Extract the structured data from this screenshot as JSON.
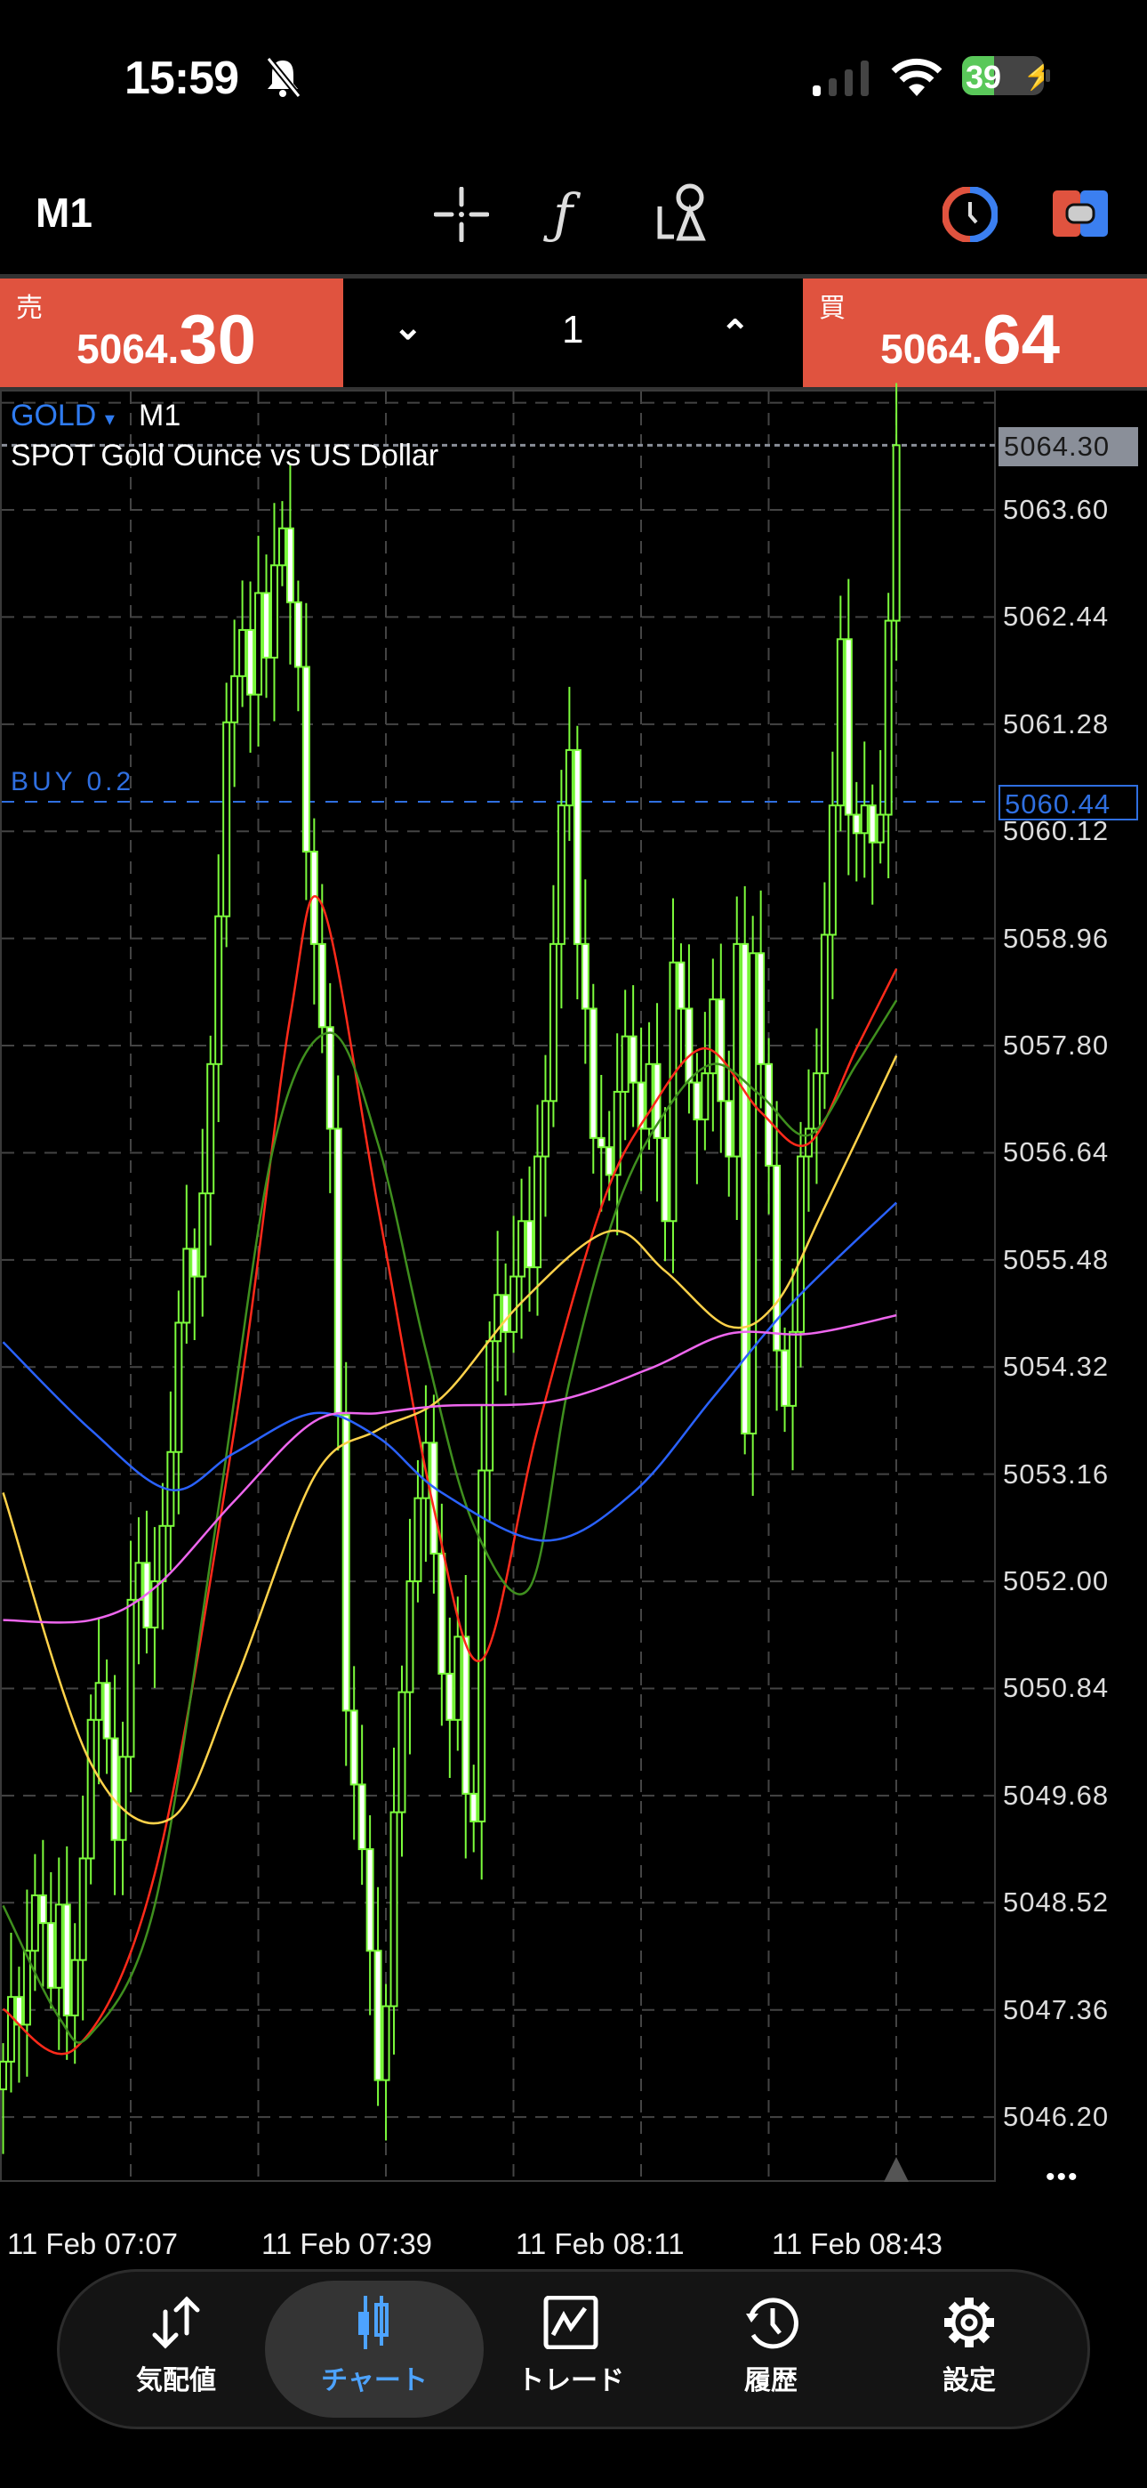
{
  "status_bar": {
    "time": "15:59",
    "battery": "39",
    "icons": [
      "bell-slash-icon",
      "cellular-signal-icon",
      "wifi-icon",
      "battery-charging-icon"
    ]
  },
  "toolbar": {
    "timeframe": "M1",
    "icons": [
      "crosshair-icon",
      "indicators-f-icon",
      "objects-icon",
      "one-click-trading-icon",
      "trade-panel-icon"
    ]
  },
  "trade_panel": {
    "sell": {
      "label": "売",
      "price_main": "5064.",
      "price_big": "30"
    },
    "buy": {
      "label": "買",
      "price_main": "5064.",
      "price_big": "64"
    },
    "lot": "1",
    "decrease_icon": "chevron-down-icon",
    "increase_icon": "chevron-up-icon"
  },
  "chart": {
    "symbol": "GOLD",
    "symbol_dropdown": "▾",
    "timeframe": "M1",
    "description": "SPOT Gold Ounce vs US Dollar",
    "position_label": "BUY 0.2",
    "more_label": "•••",
    "colors": {
      "candle": "#7cfc3c",
      "bear_fill": "#ffffff",
      "position": "#2f6fe0",
      "bid_line": "#8a8f99"
    }
  },
  "chart_data": {
    "type": "candlestick",
    "y_ticks": [
      "5063.60",
      "5062.44",
      "5061.28",
      "5060.12",
      "5058.96",
      "5057.80",
      "5056.64",
      "5055.48",
      "5054.32",
      "5053.16",
      "5052.00",
      "5050.84",
      "5049.68",
      "5048.52",
      "5047.36",
      "5046.20"
    ],
    "ylim": [
      5045.3,
      5065.2
    ],
    "x_ticks": [
      "11 Feb 07:07",
      "11 Feb 07:39",
      "11 Feb 08:11",
      "11 Feb 08:43"
    ],
    "bid_price": "5064.30",
    "position_price": "5060.44",
    "close": [
      5046.8,
      5047.5,
      5047.2,
      5048.0,
      5048.6,
      5048.3,
      5047.6,
      5048.5,
      5047.3,
      5047.9,
      5049.0,
      5050.5,
      5050.9,
      5050.3,
      5049.2,
      5050.1,
      5051.8,
      5052.2,
      5051.5,
      5052.0,
      5052.6,
      5053.4,
      5054.8,
      5055.6,
      5055.3,
      5056.2,
      5057.6,
      5059.2,
      5061.3,
      5061.8,
      5062.3,
      5061.6,
      5062.7,
      5062.0,
      5063.0,
      5063.4,
      5062.6,
      5061.9,
      5059.9,
      5058.9,
      5058.0,
      5056.9,
      5053.8,
      5050.6,
      5049.8,
      5049.1,
      5048.0,
      5046.6,
      5047.4,
      5049.5,
      5050.8,
      5052.0,
      5052.9,
      5053.5,
      5052.3,
      5051.0,
      5050.5,
      5051.4,
      5049.7,
      5049.4,
      5053.2,
      5054.6,
      5055.1,
      5054.7,
      5055.3,
      5055.9,
      5055.4,
      5056.6,
      5057.2,
      5058.9,
      5060.4,
      5061.0,
      5058.9,
      5058.2,
      5056.8,
      5056.7,
      5056.4,
      5057.3,
      5057.9,
      5057.4,
      5056.9,
      5057.6,
      5056.8,
      5055.9,
      5058.7,
      5058.2,
      5057.4,
      5057.0,
      5057.5,
      5058.3,
      5057.2,
      5056.6,
      5058.9,
      5053.6,
      5058.8,
      5057.6,
      5056.5,
      5054.5,
      5053.9,
      5054.7,
      5056.6,
      5056.9,
      5057.5,
      5059.0,
      5060.4,
      5062.2,
      5060.3,
      5060.1,
      5060.4,
      5060.0,
      5060.3,
      5062.4,
      5064.3
    ],
    "moving_averages": [
      {
        "color": "#ff2a1a",
        "points": [
          [
            0,
            5047.37
          ],
          [
            9,
            5046.94
          ],
          [
            19,
            5048.83
          ],
          [
            29,
            5053.64
          ],
          [
            36,
            5058.11
          ],
          [
            40,
            5059.32
          ],
          [
            47,
            5056.05
          ],
          [
            54,
            5052.79
          ],
          [
            60,
            5051.15
          ],
          [
            67,
            5053.64
          ],
          [
            75,
            5056.05
          ],
          [
            81,
            5057.08
          ],
          [
            88,
            5057.77
          ],
          [
            95,
            5057.08
          ],
          [
            101,
            5056.74
          ],
          [
            107,
            5057.77
          ],
          [
            112,
            5058.63
          ]
        ]
      },
      {
        "color": "#3f8f1e",
        "points": [
          [
            0,
            5048.49
          ],
          [
            7,
            5047.28
          ],
          [
            11,
            5047.1
          ],
          [
            19,
            5048.49
          ],
          [
            27,
            5052.79
          ],
          [
            34,
            5056.74
          ],
          [
            41,
            5057.94
          ],
          [
            47,
            5056.74
          ],
          [
            53,
            5054.5
          ],
          [
            59,
            5052.61
          ],
          [
            66,
            5051.93
          ],
          [
            71,
            5054.16
          ],
          [
            77,
            5056.05
          ],
          [
            83,
            5057.08
          ],
          [
            89,
            5057.6
          ],
          [
            95,
            5057.26
          ],
          [
            101,
            5056.83
          ],
          [
            107,
            5057.6
          ],
          [
            112,
            5058.29
          ]
        ]
      },
      {
        "color": "#ffd24a",
        "points": [
          [
            0,
            5052.96
          ],
          [
            11,
            5050.03
          ],
          [
            21,
            5049.43
          ],
          [
            29,
            5050.89
          ],
          [
            39,
            5053.13
          ],
          [
            47,
            5053.64
          ],
          [
            55,
            5053.99
          ],
          [
            65,
            5055.02
          ],
          [
            76,
            5055.79
          ],
          [
            83,
            5055.36
          ],
          [
            91,
            5054.76
          ],
          [
            97,
            5055.02
          ],
          [
            103,
            5056.05
          ],
          [
            112,
            5057.69
          ]
        ]
      },
      {
        "color": "#2a62ff",
        "points": [
          [
            0,
            5054.59
          ],
          [
            11,
            5053.64
          ],
          [
            21,
            5052.99
          ],
          [
            29,
            5053.39
          ],
          [
            39,
            5053.82
          ],
          [
            47,
            5053.56
          ],
          [
            55,
            5052.96
          ],
          [
            68,
            5052.44
          ],
          [
            79,
            5052.96
          ],
          [
            89,
            5053.99
          ],
          [
            99,
            5055.02
          ],
          [
            112,
            5056.1
          ]
        ]
      },
      {
        "color": "#ee66ee",
        "points": [
          [
            0,
            5051.58
          ],
          [
            11,
            5051.58
          ],
          [
            19,
            5051.93
          ],
          [
            29,
            5052.87
          ],
          [
            39,
            5053.73
          ],
          [
            47,
            5053.82
          ],
          [
            55,
            5053.9
          ],
          [
            69,
            5053.95
          ],
          [
            81,
            5054.3
          ],
          [
            91,
            5054.68
          ],
          [
            101,
            5054.68
          ],
          [
            112,
            5054.88
          ]
        ]
      }
    ]
  },
  "bottom_nav": {
    "items": [
      {
        "label": "気配値",
        "icon": "quotes-arrows-icon",
        "active": false
      },
      {
        "label": "チャート",
        "icon": "chart-candles-icon",
        "active": true
      },
      {
        "label": "トレード",
        "icon": "trade-chart-icon",
        "active": false
      },
      {
        "label": "履歴",
        "icon": "history-clock-icon",
        "active": false
      },
      {
        "label": "設定",
        "icon": "settings-gear-icon",
        "active": false
      }
    ],
    "active_color": "#4da3ff"
  }
}
